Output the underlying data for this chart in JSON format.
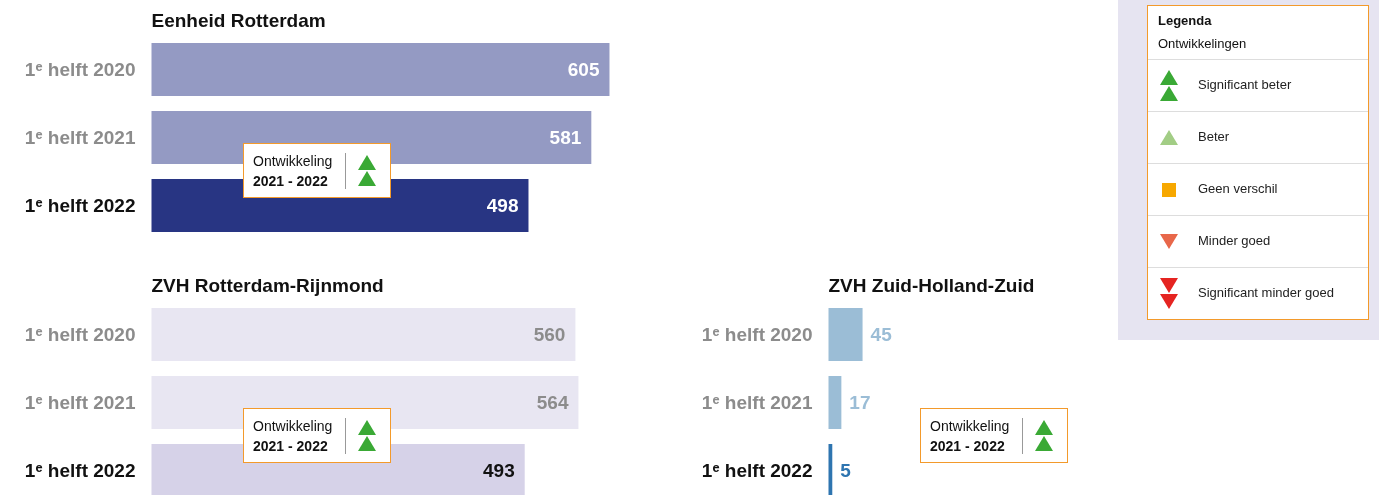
{
  "chart_data": [
    {
      "type": "bar",
      "orientation": "horizontal",
      "title": "Eenheid Rotterdam",
      "categories": [
        "1ᵉ helft 2020",
        "1ᵉ helft 2021",
        "1ᵉ helft 2022"
      ],
      "values": [
        605,
        581,
        498
      ],
      "colors": [
        "#949ac3",
        "#949ac3",
        "#283583"
      ],
      "data_labels": true,
      "annotations": [
        "Ontwikkeling 2021 - 2022"
      ]
    },
    {
      "type": "bar",
      "orientation": "horizontal",
      "title": "ZVH Rotterdam-Rijnmond",
      "categories": [
        "1ᵉ helft 2020",
        "1ᵉ helft 2021",
        "1ᵉ helft 2022"
      ],
      "values": [
        560,
        564,
        493
      ],
      "colors": [
        "#e8e6f2",
        "#e8e6f2",
        "#d6d2e8"
      ],
      "data_labels": true,
      "annotations": [
        "Ontwikkeling 2021 - 2022"
      ]
    },
    {
      "type": "bar",
      "orientation": "horizontal",
      "title": "ZVH Zuid-Holland-Zuid",
      "categories": [
        "1ᵉ helft 2020",
        "1ᵉ helft 2021",
        "1ᵉ helft 2022"
      ],
      "values": [
        45,
        17,
        5
      ],
      "colors": [
        "#9bbdd6",
        "#9bbdd6",
        "#2e75b0"
      ],
      "data_labels": true,
      "annotations": [
        "Ontwikkeling 2021 - 2022"
      ]
    },
    {
      "type": "other",
      "title": "Legenda",
      "subtitle": "Ontwikkelingen",
      "annotations": [
        "Significant beter",
        "Beter",
        "Geen verschil",
        "Minder goed",
        "Significant minder goed"
      ]
    }
  ]
}
